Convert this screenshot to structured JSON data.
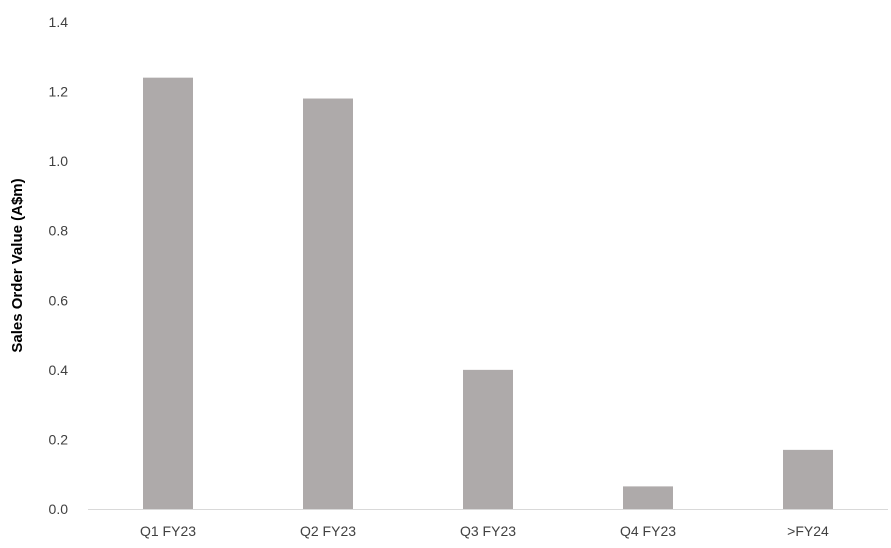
{
  "chart_data": {
    "type": "bar",
    "categories": [
      "Q1 FY23",
      "Q2 FY23",
      "Q3 FY23",
      "Q4 FY23",
      ">FY24"
    ],
    "values": [
      1.24,
      1.18,
      0.4,
      0.065,
      0.17
    ],
    "title": "",
    "xlabel": "",
    "ylabel": "Sales Order Value (A$m)",
    "ylim": [
      0,
      1.4
    ],
    "yticks": [
      "0.0",
      "0.2",
      "0.4",
      "0.6",
      "0.8",
      "1.0",
      "1.2",
      "1.4"
    ],
    "grid": false,
    "legend": "none",
    "bar_color": "#aeaaaa",
    "axis_color": "#d9d9d9"
  }
}
